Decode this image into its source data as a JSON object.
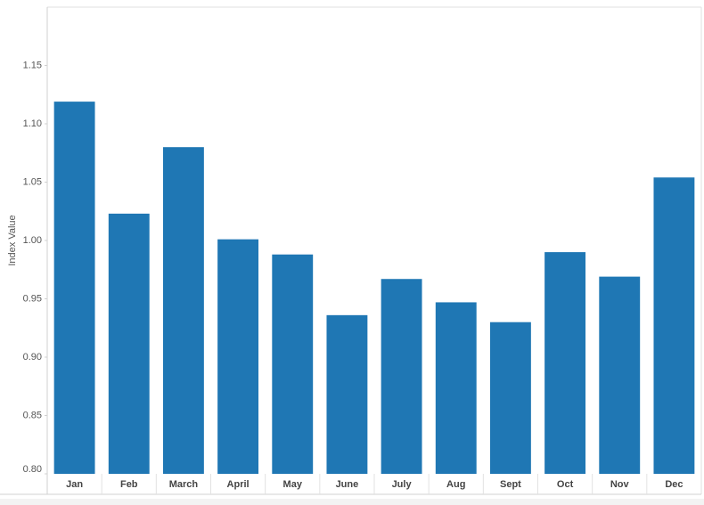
{
  "chart_data": {
    "type": "bar",
    "y_label": "Index Value",
    "categories": [
      "Jan",
      "Feb",
      "March",
      "April",
      "May",
      "June",
      "July",
      "Aug",
      "Sept",
      "Oct",
      "Nov",
      "Dec"
    ],
    "values": [
      1.119,
      1.023,
      1.08,
      1.001,
      0.988,
      0.936,
      0.967,
      0.947,
      0.93,
      0.99,
      0.969,
      1.054
    ],
    "color": "#1f77b4",
    "ylim": [
      0.8,
      1.2
    ],
    "yticks": [
      {
        "value": 0.8,
        "label": "0.80"
      },
      0.85,
      {
        "value": 0.9,
        "label": "0.90"
      },
      0.95,
      {
        "value": 1.0,
        "label": "1.00"
      },
      1.05,
      {
        "value": 1.1,
        "label": "1.10"
      },
      1.15
    ],
    "grid": false
  }
}
